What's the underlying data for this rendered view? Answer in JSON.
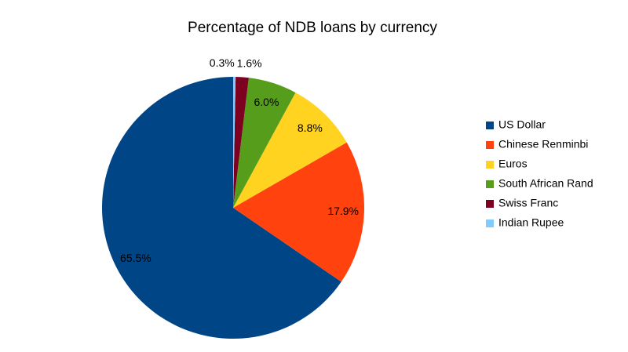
{
  "chart_data": {
    "type": "pie",
    "title": "Percentage of NDB loans by currency",
    "categories": [
      "US Dollar",
      "Chinese Renminbi",
      "Euros",
      "South African Rand",
      "Swiss Franc",
      "Indian Rupee"
    ],
    "values": [
      65.5,
      17.9,
      8.8,
      6.0,
      1.6,
      0.3
    ],
    "value_labels": [
      "65.5%",
      "17.9%",
      "8.8%",
      "6.0%",
      "1.6%",
      "0.3%"
    ],
    "colors": [
      "#004586",
      "#ff420e",
      "#ffd320",
      "#579d1c",
      "#7e0021",
      "#83caff"
    ],
    "legend": "right"
  }
}
